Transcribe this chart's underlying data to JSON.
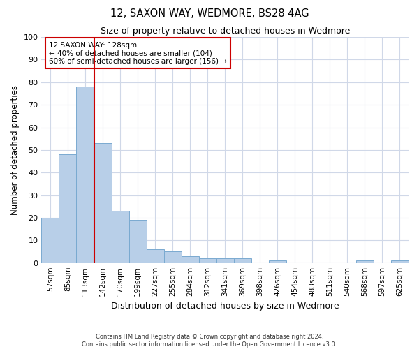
{
  "title": "12, SAXON WAY, WEDMORE, BS28 4AG",
  "subtitle": "Size of property relative to detached houses in Wedmore",
  "xlabel": "Distribution of detached houses by size in Wedmore",
  "ylabel": "Number of detached properties",
  "footer_line1": "Contains HM Land Registry data © Crown copyright and database right 2024.",
  "footer_line2": "Contains public sector information licensed under the Open Government Licence v3.0.",
  "bin_labels": [
    "57sqm",
    "85sqm",
    "113sqm",
    "142sqm",
    "170sqm",
    "199sqm",
    "227sqm",
    "255sqm",
    "284sqm",
    "312sqm",
    "341sqm",
    "369sqm",
    "398sqm",
    "426sqm",
    "454sqm",
    "483sqm",
    "511sqm",
    "540sqm",
    "568sqm",
    "597sqm",
    "625sqm"
  ],
  "bar_values": [
    20,
    48,
    78,
    53,
    23,
    19,
    6,
    5,
    3,
    2,
    2,
    2,
    0,
    1,
    0,
    0,
    0,
    0,
    1,
    0,
    1
  ],
  "bar_color": "#b8cfe8",
  "bar_edgecolor": "#7aaad0",
  "grid_color": "#d0d8e8",
  "marker_line_color": "#cc0000",
  "annotation_line1": "12 SAXON WAY: 128sqm",
  "annotation_line2": "← 40% of detached houses are smaller (104)",
  "annotation_line3": "60% of semi-detached houses are larger (156) →",
  "annotation_box_edgecolor": "#cc0000",
  "ylim": [
    0,
    100
  ],
  "yticks": [
    0,
    10,
    20,
    30,
    40,
    50,
    60,
    70,
    80,
    90,
    100
  ]
}
